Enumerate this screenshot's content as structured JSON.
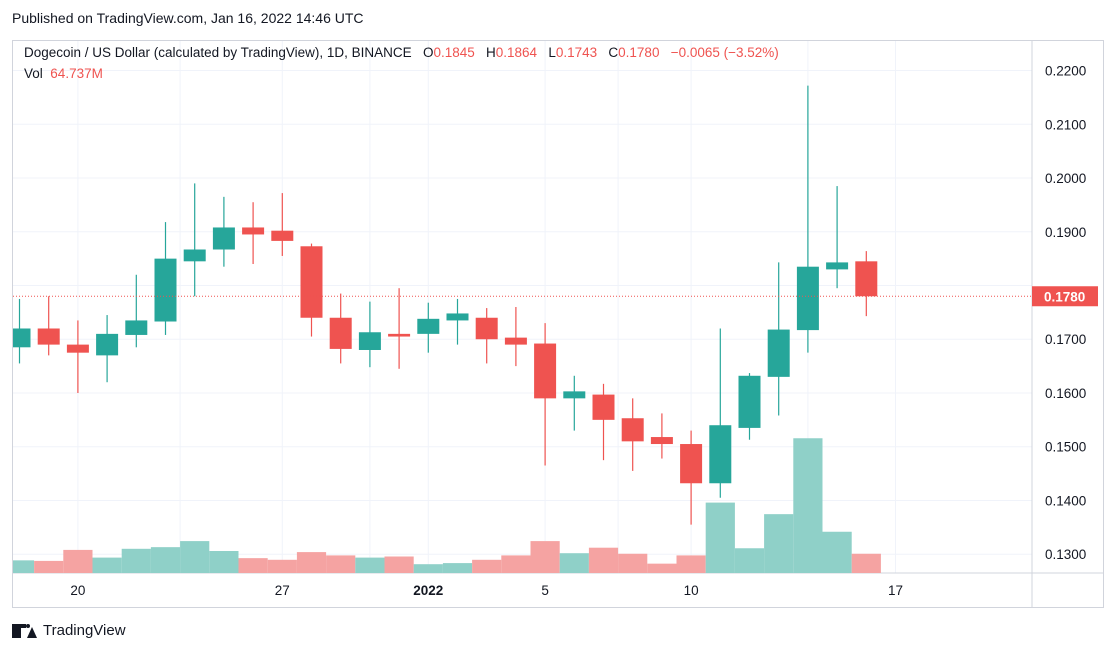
{
  "header": {
    "published": "Published on TradingView.com, Jan 16, 2022 14:46 UTC"
  },
  "legend": {
    "symbol": "Dogecoin / US Dollar (calculated by TradingView), 1D, BINANCE",
    "o_label": "O",
    "o_value": "0.1845",
    "h_label": "H",
    "h_value": "0.1864",
    "l_label": "L",
    "l_value": "0.1743",
    "c_label": "C",
    "c_value": "0.1780",
    "change": "−0.0065 (−3.52%)",
    "vol_label": "Vol",
    "vol_value": "64.737M"
  },
  "footer": {
    "brand": "TradingView"
  },
  "colors": {
    "up": "#26a69a",
    "down": "#ef5350",
    "vol_up": "#8fd0c8",
    "vol_down": "#f5a3a2",
    "grid": "#f0f3fa"
  },
  "chart_data": {
    "type": "candlestick",
    "title": "Dogecoin / US Dollar (calculated by TradingView), 1D, BINANCE",
    "ylim": [
      0.1265,
      0.2255
    ],
    "last_price": 0.178,
    "last_price_label": "0.1780",
    "y_ticks": [
      "0.2200",
      "0.2100",
      "0.2000",
      "0.1900",
      "0.1800",
      "0.1700",
      "0.1600",
      "0.1500",
      "0.1400",
      "0.1300"
    ],
    "y_tick_values": [
      0.22,
      0.21,
      0.2,
      0.19,
      0.18,
      0.17,
      0.16,
      0.15,
      0.14,
      0.13
    ],
    "x_ticks": [
      {
        "label": "20",
        "index": 2,
        "bold": false
      },
      {
        "label": "27",
        "index": 9,
        "bold": false
      },
      {
        "label": "2022",
        "index": 14,
        "bold": true
      },
      {
        "label": "5",
        "index": 18,
        "bold": false
      },
      {
        "label": "10",
        "index": 23,
        "bold": false
      },
      {
        "label": "17",
        "index": 30,
        "bold": false
      }
    ],
    "grid": true,
    "volume_ylim": [
      0,
      2.6
    ],
    "candles": [
      {
        "date": "Dec 18",
        "o": 0.1685,
        "h": 0.1775,
        "l": 0.1655,
        "c": 0.172,
        "v": 0.23
      },
      {
        "date": "Dec 19",
        "o": 0.172,
        "h": 0.178,
        "l": 0.167,
        "c": 0.169,
        "v": 0.22
      },
      {
        "date": "Dec 20",
        "o": 0.169,
        "h": 0.1735,
        "l": 0.16,
        "c": 0.1675,
        "v": 0.42
      },
      {
        "date": "Dec 21",
        "o": 0.167,
        "h": 0.1745,
        "l": 0.162,
        "c": 0.171,
        "v": 0.28
      },
      {
        "date": "Dec 22",
        "o": 0.1708,
        "h": 0.182,
        "l": 0.1685,
        "c": 0.1735,
        "v": 0.44
      },
      {
        "date": "Dec 23",
        "o": 0.1733,
        "h": 0.1918,
        "l": 0.1708,
        "c": 0.185,
        "v": 0.47
      },
      {
        "date": "Dec 24",
        "o": 0.1845,
        "h": 0.199,
        "l": 0.178,
        "c": 0.1867,
        "v": 0.58
      },
      {
        "date": "Dec 25",
        "o": 0.1867,
        "h": 0.1965,
        "l": 0.1835,
        "c": 0.1908,
        "v": 0.4
      },
      {
        "date": "Dec 26",
        "o": 0.1908,
        "h": 0.1955,
        "l": 0.184,
        "c": 0.1895,
        "v": 0.27
      },
      {
        "date": "Dec 27",
        "o": 0.1902,
        "h": 0.1972,
        "l": 0.1855,
        "c": 0.1883,
        "v": 0.24
      },
      {
        "date": "Dec 28",
        "o": 0.1873,
        "h": 0.1878,
        "l": 0.1705,
        "c": 0.174,
        "v": 0.38
      },
      {
        "date": "Dec 29",
        "o": 0.174,
        "h": 0.1785,
        "l": 0.1655,
        "c": 0.1682,
        "v": 0.32
      },
      {
        "date": "Dec 30",
        "o": 0.168,
        "h": 0.177,
        "l": 0.1648,
        "c": 0.1713,
        "v": 0.28
      },
      {
        "date": "Dec 31",
        "o": 0.171,
        "h": 0.1795,
        "l": 0.1645,
        "c": 0.1705,
        "v": 0.3
      },
      {
        "date": "Jan 1",
        "o": 0.171,
        "h": 0.1768,
        "l": 0.1675,
        "c": 0.1738,
        "v": 0.16
      },
      {
        "date": "Jan 2",
        "o": 0.1735,
        "h": 0.1775,
        "l": 0.169,
        "c": 0.1748,
        "v": 0.18
      },
      {
        "date": "Jan 3",
        "o": 0.174,
        "h": 0.1758,
        "l": 0.1655,
        "c": 0.17,
        "v": 0.24
      },
      {
        "date": "Jan 4",
        "o": 0.1703,
        "h": 0.176,
        "l": 0.165,
        "c": 0.169,
        "v": 0.32
      },
      {
        "date": "Jan 5",
        "o": 0.1692,
        "h": 0.173,
        "l": 0.1465,
        "c": 0.159,
        "v": 0.58
      },
      {
        "date": "Jan 6",
        "o": 0.159,
        "h": 0.1632,
        "l": 0.153,
        "c": 0.1603,
        "v": 0.36
      },
      {
        "date": "Jan 7",
        "o": 0.1597,
        "h": 0.1617,
        "l": 0.1475,
        "c": 0.155,
        "v": 0.46
      },
      {
        "date": "Jan 8",
        "o": 0.1553,
        "h": 0.159,
        "l": 0.1455,
        "c": 0.151,
        "v": 0.35
      },
      {
        "date": "Jan 9",
        "o": 0.1518,
        "h": 0.1562,
        "l": 0.1478,
        "c": 0.1505,
        "v": 0.17
      },
      {
        "date": "Jan 10",
        "o": 0.1505,
        "h": 0.153,
        "l": 0.1355,
        "c": 0.1432,
        "v": 0.32
      },
      {
        "date": "Jan 11",
        "o": 0.1432,
        "h": 0.172,
        "l": 0.1405,
        "c": 0.154,
        "v": 1.28
      },
      {
        "date": "Jan 12",
        "o": 0.1535,
        "h": 0.1637,
        "l": 0.1513,
        "c": 0.1632,
        "v": 0.45
      },
      {
        "date": "Jan 13",
        "o": 0.163,
        "h": 0.1843,
        "l": 0.1558,
        "c": 0.1718,
        "v": 1.07
      },
      {
        "date": "Jan 14",
        "o": 0.1717,
        "h": 0.2172,
        "l": 0.1675,
        "c": 0.1835,
        "v": 2.45
      },
      {
        "date": "Jan 15",
        "o": 0.183,
        "h": 0.1985,
        "l": 0.1795,
        "c": 0.1843,
        "v": 0.75
      },
      {
        "date": "Jan 16",
        "o": 0.1845,
        "h": 0.1864,
        "l": 0.1743,
        "c": 0.178,
        "v": 0.35
      }
    ]
  }
}
